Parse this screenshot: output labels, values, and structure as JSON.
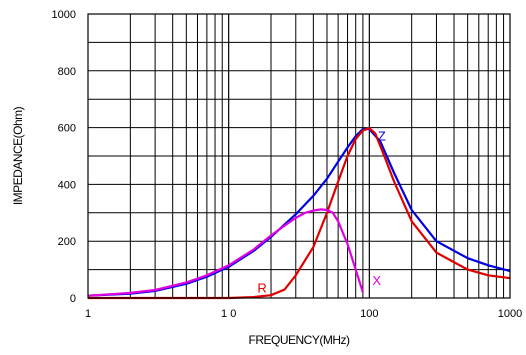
{
  "chart_data": {
    "type": "line",
    "xlabel": "FREQUENCY(MHz)",
    "ylabel": "IMPEDANCE(Ohm)",
    "xscale": "log",
    "xlim": [
      1,
      1000
    ],
    "ylim": [
      0,
      1000
    ],
    "grid": true,
    "x_ticks": [
      1,
      10,
      100,
      1000
    ],
    "x_tick_labels": [
      "1",
      "1 0",
      "100",
      "1000"
    ],
    "y_ticks": [
      0,
      200,
      400,
      600,
      800,
      1000
    ],
    "y_tick_labels": [
      "0",
      "200",
      "400",
      "600",
      "800",
      "1000"
    ],
    "series": [
      {
        "name": "Z",
        "color": "#0000e0",
        "x": [
          1,
          2,
          3,
          5,
          7,
          10,
          15,
          20,
          30,
          40,
          50,
          60,
          70,
          80,
          90,
          100,
          120,
          150,
          200,
          300,
          500,
          700,
          1000
        ],
        "y": [
          8,
          15,
          25,
          50,
          75,
          110,
          165,
          215,
          295,
          360,
          420,
          480,
          530,
          570,
          595,
          595,
          550,
          440,
          310,
          200,
          140,
          115,
          95
        ]
      },
      {
        "name": "R",
        "color": "#e00000",
        "x": [
          1,
          5,
          10,
          15,
          20,
          25,
          30,
          40,
          50,
          60,
          70,
          80,
          90,
          100,
          110,
          130,
          150,
          200,
          300,
          500,
          700,
          1000
        ],
        "y": [
          0,
          0,
          0,
          3,
          10,
          30,
          80,
          180,
          300,
          410,
          500,
          560,
          590,
          598,
          580,
          490,
          410,
          270,
          160,
          100,
          80,
          70
        ]
      },
      {
        "name": "X",
        "color": "#e000e0",
        "x": [
          1,
          2,
          3,
          5,
          7,
          10,
          15,
          20,
          25,
          30,
          35,
          40,
          45,
          50,
          55,
          60,
          70,
          80,
          90
        ],
        "y": [
          8,
          18,
          28,
          55,
          80,
          115,
          170,
          220,
          255,
          282,
          300,
          308,
          312,
          310,
          300,
          270,
          190,
          100,
          20
        ]
      }
    ],
    "labels": [
      {
        "text": "Z",
        "color": "#0000e0",
        "x": 115,
        "y": 555
      },
      {
        "text": "R",
        "color": "#e00000",
        "x": 16,
        "y": 20
      },
      {
        "text": "X",
        "color": "#e000e0",
        "x": 105,
        "y": 45
      }
    ]
  }
}
